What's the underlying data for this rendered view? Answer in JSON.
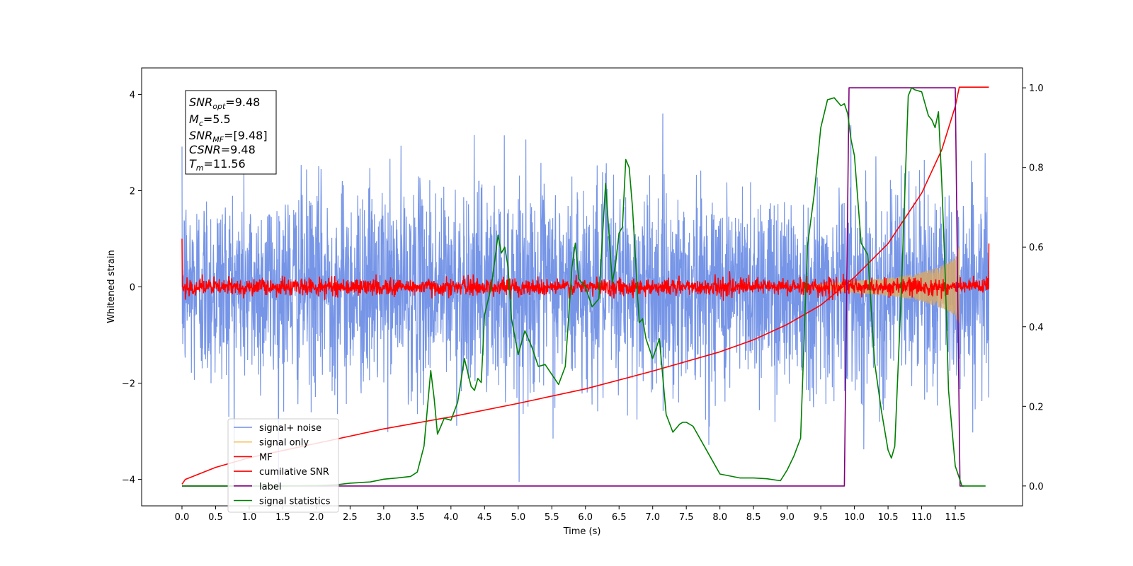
{
  "chart_data": {
    "type": "line",
    "xlabel": "Time (s)",
    "ylabel": "Whitened strain",
    "xlim": [
      -0.6,
      12.5
    ],
    "ylim": [
      -4.55,
      4.55
    ],
    "y2lim": [
      -0.05,
      1.05
    ],
    "x_ticks": [
      "0.0",
      "0.5",
      "1.0",
      "1.5",
      "2.0",
      "2.5",
      "3.0",
      "3.5",
      "4.0",
      "4.5",
      "5.0",
      "5.5",
      "6.0",
      "6.5",
      "7.0",
      "7.5",
      "8.0",
      "8.5",
      "9.0",
      "9.5",
      "10.0",
      "10.5",
      "11.0",
      "11.5"
    ],
    "y_ticks": [
      "4",
      "2",
      "0",
      "−2",
      "−4"
    ],
    "y2_ticks": [
      "1.0",
      "0.8",
      "0.6",
      "0.4",
      "0.2",
      "0.0"
    ],
    "annotation": {
      "snr_opt": {
        "main": "SNR",
        "sub": "opt",
        "value": "=9.48"
      },
      "mc": {
        "main": "M",
        "sub": "c",
        "value": "=5.5"
      },
      "snr_mf": {
        "main": "SNR",
        "sub": "MF",
        "value": "=[9.48]"
      },
      "csnr": {
        "main": "CSNR",
        "sub": "",
        "value": "=9.48"
      },
      "tm": {
        "main": "T",
        "sub": "m",
        "value": "=11.56"
      }
    },
    "legend": {
      "placement": "lower-left",
      "entries": [
        {
          "label": "signal+ noise",
          "color": "#6f8fe6"
        },
        {
          "label": "signal only",
          "color": "#f5c060"
        },
        {
          "label": "MF",
          "color": "#ff0000"
        },
        {
          "label": "cumilative SNR",
          "color": "#ff0000"
        },
        {
          "label": "label",
          "color": "#800080"
        },
        {
          "label": "signal statistics",
          "color": "#008000"
        }
      ]
    },
    "series": [
      {
        "name": "signal+ noise",
        "axis": "left",
        "color": "#6f8fe6",
        "style": "noise",
        "t_range": [
          0,
          12
        ],
        "std": 1.05,
        "envelope": [
          -4.15,
          4.15
        ]
      },
      {
        "name": "signal only",
        "axis": "left",
        "color": "#d7a86a",
        "style": "chirp",
        "x": [
          9.4,
          9.8,
          10.2,
          10.6,
          11.0,
          11.3,
          11.5,
          11.56
        ],
        "amplitude": [
          0.05,
          0.1,
          0.15,
          0.2,
          0.3,
          0.45,
          0.6,
          0.85
        ]
      },
      {
        "name": "MF",
        "axis": "left",
        "color": "#ff0000",
        "style": "noise",
        "t_range": [
          0,
          12
        ],
        "std": 0.09,
        "start_value": 1.0,
        "end_value": 0.9
      },
      {
        "name": "cumilative SNR",
        "axis": "left",
        "color": "#ff0000",
        "x": [
          0.0,
          0.05,
          0.5,
          1.0,
          2.0,
          3.0,
          4.0,
          5.0,
          6.0,
          7.0,
          8.0,
          8.5,
          9.0,
          9.5,
          10.0,
          10.5,
          11.0,
          11.3,
          11.5,
          11.56,
          12.0
        ],
        "y": [
          -4.1,
          -4.0,
          -3.75,
          -3.55,
          -3.25,
          -2.95,
          -2.7,
          -2.42,
          -2.12,
          -1.75,
          -1.35,
          -1.1,
          -0.78,
          -0.38,
          0.2,
          0.9,
          1.95,
          2.85,
          3.75,
          4.15,
          4.15
        ]
      },
      {
        "name": "label",
        "axis": "right",
        "color": "#800080",
        "x": [
          0.0,
          9.85,
          9.92,
          11.5,
          11.57,
          11.63
        ],
        "y": [
          0.0,
          0.0,
          1.0,
          1.0,
          0.0,
          0.0
        ]
      },
      {
        "name": "signal statistics",
        "axis": "right",
        "color": "#008000",
        "x": [
          0.0,
          0.5,
          1.0,
          1.5,
          2.0,
          2.3,
          2.5,
          2.8,
          3.0,
          3.2,
          3.4,
          3.5,
          3.6,
          3.7,
          3.75,
          3.8,
          3.85,
          3.9,
          4.0,
          4.1,
          4.2,
          4.3,
          4.35,
          4.4,
          4.45,
          4.5,
          4.6,
          4.7,
          4.75,
          4.8,
          4.85,
          4.9,
          5.0,
          5.1,
          5.2,
          5.3,
          5.4,
          5.5,
          5.6,
          5.7,
          5.8,
          5.85,
          5.9,
          6.0,
          6.1,
          6.2,
          6.3,
          6.4,
          6.45,
          6.5,
          6.55,
          6.6,
          6.65,
          6.7,
          6.8,
          6.85,
          6.9,
          7.0,
          7.1,
          7.2,
          7.3,
          7.4,
          7.45,
          7.5,
          7.6,
          7.8,
          8.0,
          8.3,
          8.5,
          8.7,
          8.9,
          9.0,
          9.1,
          9.2,
          9.3,
          9.4,
          9.5,
          9.6,
          9.7,
          9.8,
          9.85,
          9.9,
          9.95,
          10.0,
          10.1,
          10.2,
          10.3,
          10.4,
          10.5,
          10.55,
          10.6,
          10.7,
          10.8,
          10.85,
          10.9,
          11.0,
          11.1,
          11.15,
          11.2,
          11.25,
          11.3,
          11.35,
          11.4,
          11.5,
          11.6,
          11.8,
          11.95
        ],
        "y": [
          0.0,
          0.0,
          0.0,
          0.0,
          0.001,
          0.003,
          0.007,
          0.01,
          0.017,
          0.02,
          0.024,
          0.035,
          0.1,
          0.29,
          0.22,
          0.13,
          0.15,
          0.17,
          0.165,
          0.21,
          0.32,
          0.25,
          0.24,
          0.27,
          0.26,
          0.43,
          0.5,
          0.63,
          0.585,
          0.6,
          0.55,
          0.42,
          0.33,
          0.39,
          0.35,
          0.3,
          0.305,
          0.28,
          0.255,
          0.3,
          0.55,
          0.61,
          0.52,
          0.5,
          0.45,
          0.47,
          0.76,
          0.51,
          0.56,
          0.635,
          0.65,
          0.82,
          0.8,
          0.7,
          0.41,
          0.42,
          0.37,
          0.32,
          0.37,
          0.18,
          0.135,
          0.155,
          0.16,
          0.16,
          0.15,
          0.09,
          0.03,
          0.02,
          0.02,
          0.018,
          0.013,
          0.04,
          0.075,
          0.12,
          0.6,
          0.73,
          0.9,
          0.97,
          0.975,
          0.955,
          0.96,
          0.935,
          0.87,
          0.83,
          0.61,
          0.58,
          0.31,
          0.19,
          0.09,
          0.07,
          0.1,
          0.5,
          0.98,
          1.0,
          0.995,
          0.99,
          0.93,
          0.92,
          0.9,
          0.94,
          0.76,
          0.53,
          0.24,
          0.05,
          0.0,
          0.0,
          0.0
        ]
      }
    ]
  }
}
